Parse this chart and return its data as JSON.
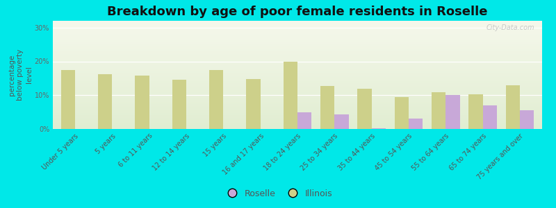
{
  "title": "Breakdown by age of poor female residents in Roselle",
  "ylabel": "percentage\nbelow poverty\nlevel",
  "categories": [
    "Under 5 years",
    "5 years",
    "6 to 11 years",
    "12 to 14 years",
    "15 years",
    "16 and 17 years",
    "18 to 24 years",
    "25 to 34 years",
    "35 to 44 years",
    "45 to 54 years",
    "55 to 64 years",
    "65 to 74 years",
    "75 years and over"
  ],
  "roselle": [
    0,
    0,
    0,
    0,
    0,
    0,
    5.0,
    4.3,
    0.3,
    3.0,
    10.0,
    7.0,
    5.5
  ],
  "illinois": [
    17.5,
    16.3,
    15.8,
    14.5,
    17.5,
    14.8,
    19.8,
    12.8,
    12.0,
    9.5,
    10.8,
    10.3,
    13.0
  ],
  "roselle_color": "#c8a8d8",
  "illinois_color": "#cdd08a",
  "outer_bg": "#00e8e8",
  "ylim": [
    0,
    32
  ],
  "yticks": [
    0,
    10,
    20,
    30
  ],
  "ytick_labels": [
    "0%",
    "10%",
    "20%",
    "30%"
  ],
  "bar_width": 0.38,
  "title_fontsize": 13,
  "axis_fontsize": 7.5,
  "tick_fontsize": 7,
  "legend_fontsize": 9
}
